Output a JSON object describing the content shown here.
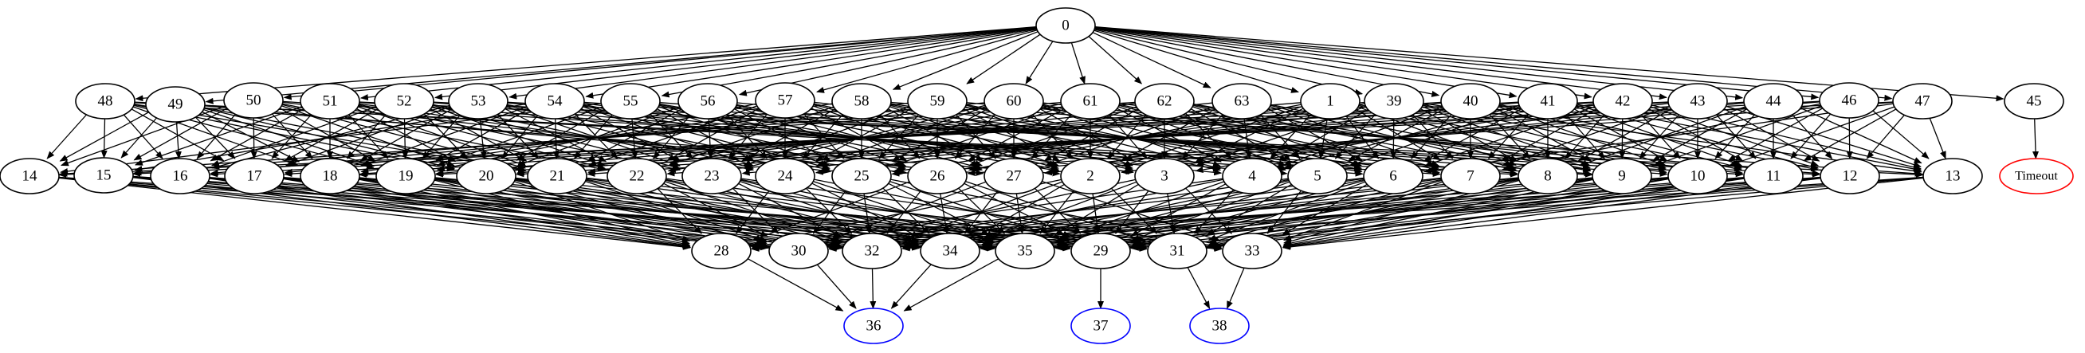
{
  "graph": {
    "nodes": [
      {
        "id": "0"
      },
      {
        "id": "48"
      },
      {
        "id": "49"
      },
      {
        "id": "50"
      },
      {
        "id": "51"
      },
      {
        "id": "52"
      },
      {
        "id": "53"
      },
      {
        "id": "54"
      },
      {
        "id": "55"
      },
      {
        "id": "56"
      },
      {
        "id": "57"
      },
      {
        "id": "58"
      },
      {
        "id": "59"
      },
      {
        "id": "60"
      },
      {
        "id": "61"
      },
      {
        "id": "62"
      },
      {
        "id": "63"
      },
      {
        "id": "1"
      },
      {
        "id": "39"
      },
      {
        "id": "40"
      },
      {
        "id": "41"
      },
      {
        "id": "42"
      },
      {
        "id": "43"
      },
      {
        "id": "44"
      },
      {
        "id": "46"
      },
      {
        "id": "47"
      },
      {
        "id": "45"
      },
      {
        "id": "14"
      },
      {
        "id": "15"
      },
      {
        "id": "16"
      },
      {
        "id": "17"
      },
      {
        "id": "18"
      },
      {
        "id": "19"
      },
      {
        "id": "20"
      },
      {
        "id": "21"
      },
      {
        "id": "22"
      },
      {
        "id": "23"
      },
      {
        "id": "24"
      },
      {
        "id": "25"
      },
      {
        "id": "26"
      },
      {
        "id": "27"
      },
      {
        "id": "2"
      },
      {
        "id": "3"
      },
      {
        "id": "4"
      },
      {
        "id": "5"
      },
      {
        "id": "6"
      },
      {
        "id": "7"
      },
      {
        "id": "8"
      },
      {
        "id": "9"
      },
      {
        "id": "10"
      },
      {
        "id": "11"
      },
      {
        "id": "12"
      },
      {
        "id": "13"
      },
      {
        "id": "Timeout",
        "color": "#ff0000"
      },
      {
        "id": "28"
      },
      {
        "id": "30"
      },
      {
        "id": "32"
      },
      {
        "id": "34"
      },
      {
        "id": "35"
      },
      {
        "id": "29"
      },
      {
        "id": "31"
      },
      {
        "id": "33"
      },
      {
        "id": "36",
        "color": "#0000ff"
      },
      {
        "id": "37",
        "color": "#0000ff"
      },
      {
        "id": "38",
        "color": "#0000ff"
      }
    ],
    "tiers": {
      "row1": [
        "48",
        "49",
        "50",
        "51",
        "52",
        "53",
        "54",
        "55",
        "56",
        "57",
        "58",
        "59",
        "60",
        "61",
        "62",
        "63",
        "1",
        "39",
        "40",
        "41",
        "42",
        "43",
        "44",
        "46",
        "47"
      ],
      "row2": [
        "14",
        "15",
        "16",
        "17",
        "18",
        "19",
        "20",
        "21",
        "22",
        "23",
        "24",
        "25",
        "26",
        "27",
        "2",
        "3",
        "4",
        "5",
        "6",
        "7",
        "8",
        "9",
        "10",
        "11",
        "12",
        "13"
      ],
      "row3": [
        "28",
        "30",
        "32",
        "34",
        "35",
        "29",
        "31",
        "33"
      ]
    },
    "edges_explicit": [
      [
        "0",
        "45"
      ],
      [
        "45",
        "Timeout"
      ],
      [
        "28",
        "36"
      ],
      [
        "30",
        "36"
      ],
      [
        "32",
        "36"
      ],
      [
        "34",
        "36"
      ],
      [
        "35",
        "36"
      ],
      [
        "29",
        "37"
      ],
      [
        "31",
        "38"
      ],
      [
        "33",
        "38"
      ],
      [
        "47",
        "10"
      ],
      [
        "47",
        "11"
      ],
      [
        "47",
        "12"
      ],
      [
        "47",
        "13"
      ]
    ],
    "edge_color": "#000000"
  }
}
